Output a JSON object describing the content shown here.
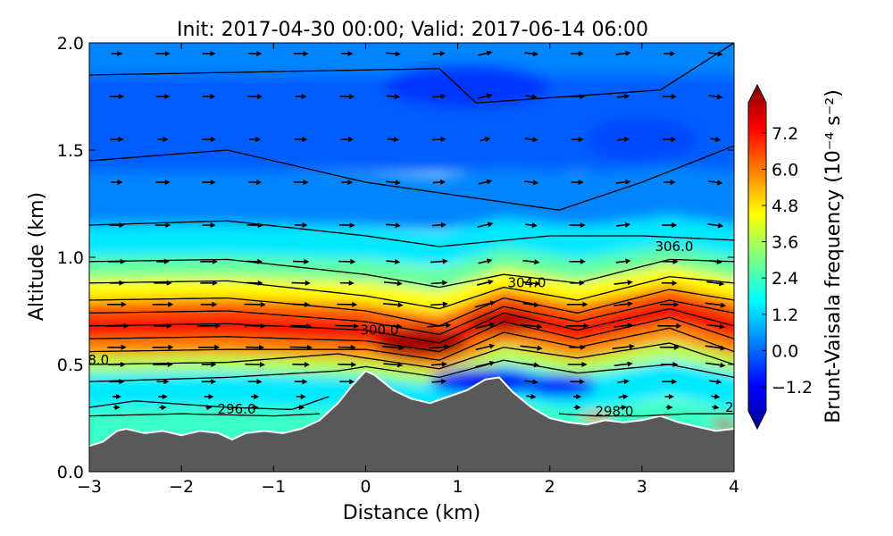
{
  "chart_data": {
    "type": "heatmap",
    "title": "Init: 2017-04-30 00:00; Valid: 2017-06-14 06:00",
    "xlabel": "Distance (km)",
    "ylabel": "Altitude (km)",
    "xlim": [
      -3,
      4
    ],
    "ylim": [
      0.0,
      2.0
    ],
    "x_ticks": [
      -3,
      -2,
      -1,
      0,
      1,
      2,
      3,
      4
    ],
    "x_tick_labels": [
      "−3",
      "−2",
      "−1",
      "0",
      "1",
      "2",
      "3",
      "4"
    ],
    "y_ticks": [
      0.0,
      0.5,
      1.0,
      1.5,
      2.0
    ],
    "y_tick_labels": [
      "0.0",
      "0.5",
      "1.0",
      "1.5",
      "2.0"
    ],
    "colorbar": {
      "label": "Brunt-Vaisala frequency (10⁻⁴ s⁻²)",
      "range": [
        -2.0,
        8.2
      ],
      "ticks": [
        -1.2,
        0.0,
        1.2,
        2.4,
        3.6,
        4.8,
        6.0,
        7.2
      ],
      "tick_labels": [
        "−1.2",
        "0.0",
        "1.2",
        "2.4",
        "3.6",
        "4.8",
        "6.0",
        "7.2"
      ],
      "extend": "both",
      "colormap": [
        "#00008f",
        "#0000ff",
        "#0080ff",
        "#00ffff",
        "#80ff80",
        "#ffff00",
        "#ff8000",
        "#ff0000",
        "#800000"
      ]
    },
    "terrain": {
      "color": "#595959",
      "outline_color": "#ffffff",
      "x": [
        -3.0,
        -2.85,
        -2.7,
        -2.6,
        -2.4,
        -2.2,
        -2.0,
        -1.8,
        -1.6,
        -1.45,
        -1.3,
        -1.1,
        -0.9,
        -0.7,
        -0.5,
        -0.3,
        -0.15,
        0.0,
        0.1,
        0.3,
        0.5,
        0.7,
        0.9,
        1.1,
        1.3,
        1.45,
        1.6,
        1.8,
        2.0,
        2.2,
        2.4,
        2.6,
        2.8,
        3.0,
        3.2,
        3.4,
        3.6,
        3.8,
        4.0
      ],
      "y": [
        0.12,
        0.14,
        0.19,
        0.2,
        0.18,
        0.19,
        0.17,
        0.19,
        0.18,
        0.15,
        0.18,
        0.19,
        0.18,
        0.2,
        0.24,
        0.32,
        0.4,
        0.47,
        0.45,
        0.38,
        0.34,
        0.32,
        0.35,
        0.38,
        0.43,
        0.44,
        0.37,
        0.3,
        0.25,
        0.23,
        0.22,
        0.24,
        0.23,
        0.24,
        0.26,
        0.23,
        0.21,
        0.19,
        0.2
      ]
    },
    "field_regions": [
      {
        "level": 0.6,
        "y": [
          1.85,
          2.0
        ]
      },
      {
        "level": 0.2,
        "y": [
          1.4,
          1.85
        ]
      },
      {
        "level": 0.6,
        "y": [
          1.15,
          1.4
        ]
      },
      {
        "level": 1.6,
        "y": [
          1.0,
          1.15
        ]
      },
      {
        "level": 2.8,
        "y": [
          0.9,
          1.0
        ]
      },
      {
        "level": 4.4,
        "y": [
          0.8,
          0.9
        ]
      },
      {
        "level": 6.0,
        "y": [
          0.72,
          0.8
        ]
      },
      {
        "level": 7.0,
        "y": [
          0.62,
          0.72
        ]
      },
      {
        "level": 5.6,
        "y": [
          0.54,
          0.62
        ]
      },
      {
        "level": 3.6,
        "y": [
          0.46,
          0.54
        ]
      },
      {
        "level": 1.6,
        "y": [
          0.3,
          0.46
        ]
      },
      {
        "level": 2.4,
        "y": [
          0.12,
          0.3
        ]
      }
    ],
    "field_anomalies": [
      {
        "x": 0.6,
        "y": 0.6,
        "level": 7.8,
        "rx": 0.5,
        "ry": 0.07
      },
      {
        "x": 1.5,
        "y": 0.7,
        "level": 7.6,
        "rx": 0.4,
        "ry": 0.06
      },
      {
        "x": 1.3,
        "y": 0.42,
        "level": -0.8,
        "rx": 0.6,
        "ry": 0.06
      },
      {
        "x": 2.1,
        "y": 0.4,
        "level": -0.6,
        "rx": 0.4,
        "ry": 0.05
      },
      {
        "x": 3.9,
        "y": 0.22,
        "level": 7.6,
        "rx": 0.15,
        "ry": 0.02
      },
      {
        "x": 2.5,
        "y": 0.25,
        "level": 6.4,
        "rx": 0.15,
        "ry": 0.02
      },
      {
        "x": 1.1,
        "y": 1.8,
        "level": -0.2,
        "rx": 0.9,
        "ry": 0.1
      },
      {
        "x": 3.0,
        "y": 1.55,
        "level": 0.0,
        "rx": 0.6,
        "ry": 0.1
      }
    ],
    "isentropes": [
      {
        "x": [
          -3,
          0.8,
          1.2,
          3.2,
          4
        ],
        "y": [
          1.85,
          1.88,
          1.72,
          1.78,
          2.0
        ]
      },
      {
        "x": [
          -3,
          -1.5,
          0.0,
          2.1,
          3.0,
          4.0
        ],
        "y": [
          1.45,
          1.5,
          1.35,
          1.22,
          1.35,
          1.52
        ]
      },
      {
        "x": [
          -3,
          -1.5,
          0.0,
          0.8,
          2.0,
          3.0,
          4.0
        ],
        "y": [
          1.15,
          1.17,
          1.1,
          1.05,
          1.1,
          1.1,
          1.08
        ]
      },
      {
        "x": [
          -3,
          -1.5,
          0.0,
          0.8,
          1.5,
          2.3,
          3.3,
          4.0
        ],
        "y": [
          0.98,
          0.99,
          0.92,
          0.86,
          0.92,
          0.88,
          0.99,
          0.98
        ]
      },
      {
        "x": [
          -3,
          -1.5,
          0.0,
          0.8,
          1.5,
          2.3,
          3.3,
          4.0
        ],
        "y": [
          0.88,
          0.89,
          0.82,
          0.76,
          0.86,
          0.8,
          0.91,
          0.88
        ]
      },
      {
        "x": [
          -3,
          -1.5,
          0.0,
          0.8,
          1.5,
          2.3,
          3.3,
          4.0
        ],
        "y": [
          0.8,
          0.81,
          0.75,
          0.68,
          0.81,
          0.74,
          0.85,
          0.8
        ]
      },
      {
        "x": [
          -3,
          -1.5,
          0.0,
          0.8,
          1.5,
          2.3,
          3.3,
          4.0
        ],
        "y": [
          0.74,
          0.75,
          0.7,
          0.64,
          0.77,
          0.7,
          0.8,
          0.74
        ]
      },
      {
        "x": [
          -3,
          -1.5,
          0.0,
          0.8,
          1.5,
          2.3,
          3.3,
          4.0
        ],
        "y": [
          0.68,
          0.69,
          0.66,
          0.6,
          0.74,
          0.66,
          0.76,
          0.68
        ]
      },
      {
        "x": [
          -3,
          -1.5,
          0.0,
          0.8,
          1.5,
          2.3,
          3.3,
          4.0
        ],
        "y": [
          0.62,
          0.63,
          0.61,
          0.56,
          0.7,
          0.62,
          0.72,
          0.62
        ]
      },
      {
        "x": [
          -3,
          -1.5,
          0.0,
          0.8,
          1.5,
          2.3,
          3.3,
          4.0
        ],
        "y": [
          0.56,
          0.57,
          0.57,
          0.52,
          0.65,
          0.58,
          0.67,
          0.56
        ]
      },
      {
        "x": [
          -3,
          -1.5,
          -0.3,
          0.0,
          0.8,
          1.5,
          2.3,
          3.3,
          4.0
        ],
        "y": [
          0.5,
          0.51,
          0.55,
          0.53,
          0.48,
          0.58,
          0.53,
          0.6,
          0.5
        ]
      },
      {
        "x": [
          -3,
          -1.5,
          -0.3,
          0.0,
          0.8,
          1.5,
          2.3,
          3.3,
          4.0
        ],
        "y": [
          0.42,
          0.44,
          0.47,
          0.49,
          0.44,
          0.52,
          0.46,
          0.5,
          0.44
        ]
      },
      {
        "x": [
          -3,
          -2.5,
          -1.5,
          -0.8,
          -0.4
        ],
        "y": [
          0.3,
          0.33,
          0.3,
          0.29,
          0.35
        ]
      },
      {
        "x": [
          -3,
          -2.0,
          -1.0,
          -0.5
        ],
        "y": [
          0.26,
          0.27,
          0.26,
          0.27
        ]
      },
      {
        "x": [
          2.1,
          2.5,
          3.0,
          3.5,
          4.0
        ],
        "y": [
          0.27,
          0.26,
          0.26,
          0.27,
          0.27
        ]
      }
    ],
    "contour_labels": [
      {
        "text": "8.0",
        "x": -2.9,
        "y": 0.5
      },
      {
        "text": "296.0",
        "x": -1.4,
        "y": 0.27
      },
      {
        "text": "300.0",
        "x": 0.15,
        "y": 0.64
      },
      {
        "text": "304.0",
        "x": 1.75,
        "y": 0.86
      },
      {
        "text": "298.0",
        "x": 2.7,
        "y": 0.26
      },
      {
        "text": "306.0",
        "x": 3.35,
        "y": 1.03
      },
      {
        "text": "2",
        "x": 3.95,
        "y": 0.28
      }
    ],
    "wind_vectors": {
      "x": [
        -2.7,
        -2.2,
        -1.7,
        -1.2,
        -0.7,
        -0.2,
        0.3,
        0.8,
        1.3,
        1.8,
        2.3,
        2.8,
        3.3,
        3.8
      ],
      "y": [
        1.95,
        1.75,
        1.55,
        1.35,
        1.15,
        0.98,
        0.88,
        0.78,
        0.68,
        0.58,
        0.5,
        0.42,
        0.35,
        0.3
      ],
      "u": [
        0.9,
        0.9,
        0.8,
        0.9,
        1.0,
        1.1,
        1.2,
        1.4,
        1.6,
        1.5,
        1.3,
        0.9,
        0.5,
        0.3
      ],
      "shear": 0.25
    }
  }
}
